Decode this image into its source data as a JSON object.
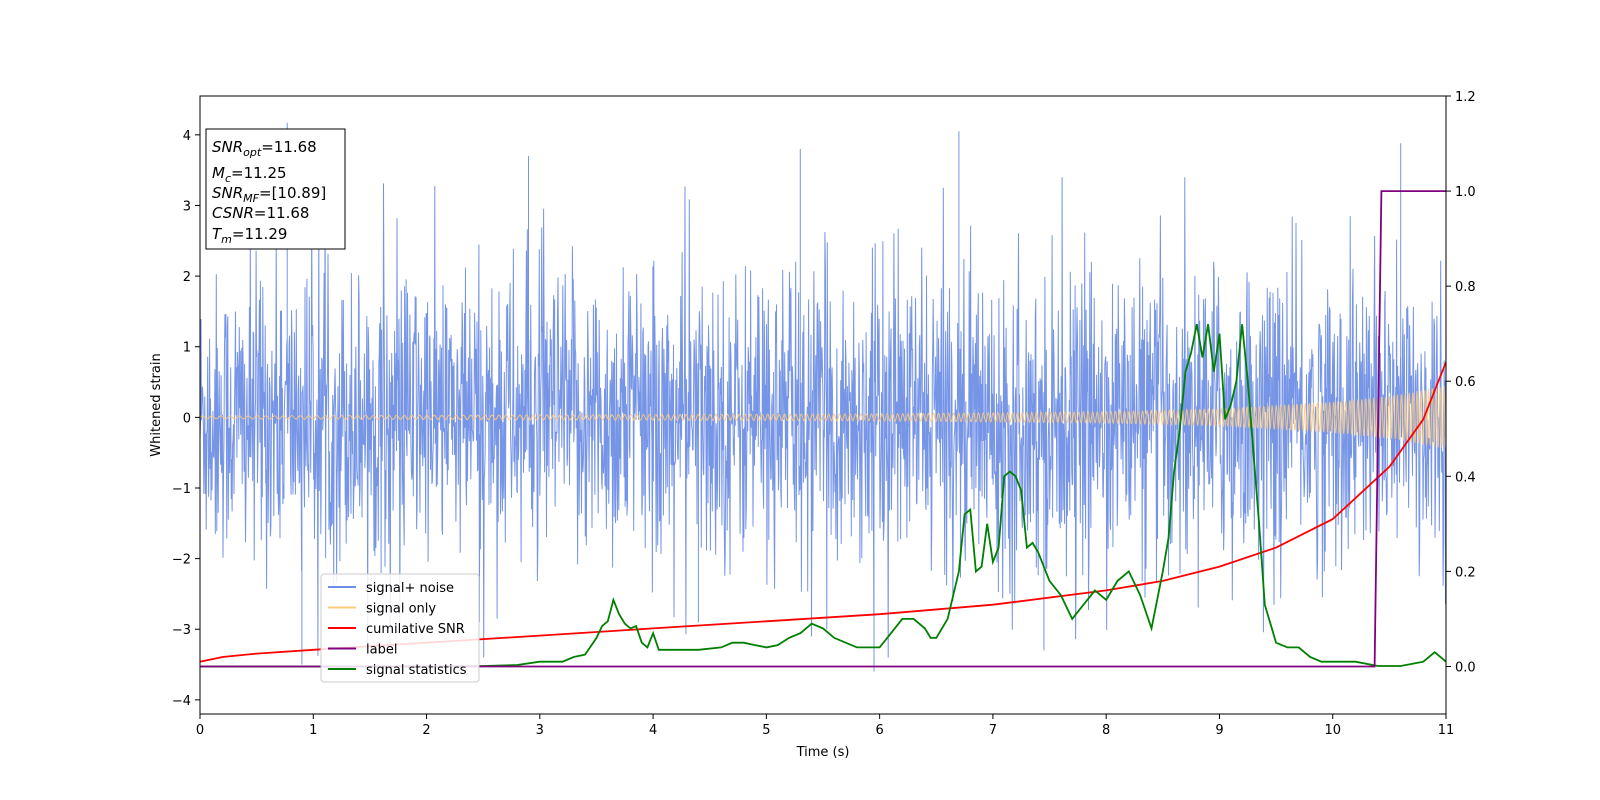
{
  "chart_data": {
    "type": "line",
    "xlabel": "Time (s)",
    "ylabel": "Whitened strain",
    "xlim": [
      0,
      11
    ],
    "ylim_left": [
      -4.2,
      4.55
    ],
    "ylim_right": [
      -0.1,
      1.2
    ],
    "x_ticks": [
      0,
      1,
      2,
      3,
      4,
      5,
      6,
      7,
      8,
      9,
      10,
      11
    ],
    "y_ticks_left": [
      -4,
      -3,
      -2,
      -1,
      0,
      1,
      2,
      3,
      4
    ],
    "y_ticks_left_labels": [
      "−4",
      "−3",
      "−2",
      "−1",
      "0",
      "1",
      "2",
      "3",
      "4"
    ],
    "y_ticks_right": [
      0.0,
      0.2,
      0.4,
      0.6,
      0.8,
      1.0,
      1.2
    ],
    "y_ticks_right_labels": [
      "0.0",
      "0.2",
      "0.4",
      "0.6",
      "0.8",
      "1.0",
      "1.2"
    ],
    "grid": false,
    "legend_position": "lower-left",
    "legend": [
      {
        "name": "signal+ noise",
        "color": "#6f8fe6"
      },
      {
        "name": "signal only",
        "color": "#ffc97a"
      },
      {
        "name": "cumilative SNR",
        "color": "#ff0000"
      },
      {
        "name": "label",
        "color": "#800080"
      },
      {
        "name": "signal statistics",
        "color": "#007f00"
      }
    ],
    "info_box": {
      "position": "top-left",
      "lines": [
        {
          "base": "SNR",
          "sub": "opt",
          "rest": "=11.68"
        },
        {
          "base": "M",
          "sub": "c",
          "rest": "=11.25"
        },
        {
          "base": "SNR",
          "sub": "MF",
          "rest": "=[10.89]"
        },
        {
          "base": "CSNR",
          "sub": "",
          "rest": "=11.68"
        },
        {
          "base": "T",
          "sub": "m",
          "rest": "=11.29"
        }
      ]
    },
    "series": [
      {
        "name": "signal+ noise",
        "axis": "left",
        "description": "dense whitened noise, typical amplitude about ±1.8 with spikes to ±4",
        "noise_sigma": 1.0,
        "spikes": [
          [
            0.77,
            4.17
          ],
          [
            2.9,
            3.7
          ],
          [
            5.3,
            3.8
          ],
          [
            6.7,
            4.05
          ],
          [
            10.6,
            3.88
          ],
          [
            5.95,
            -3.6
          ],
          [
            0.9,
            -3.5
          ],
          [
            7.45,
            -3.3
          ],
          [
            4.4,
            -2.9
          ]
        ]
      },
      {
        "name": "signal only",
        "axis": "left",
        "description": "chirp with amplitude growing toward merger",
        "amplitude_points": [
          [
            0,
            0.02
          ],
          [
            6,
            0.05
          ],
          [
            8,
            0.08
          ],
          [
            9,
            0.12
          ],
          [
            10,
            0.22
          ],
          [
            10.5,
            0.3
          ],
          [
            11,
            0.45
          ]
        ]
      },
      {
        "name": "cumilative SNR",
        "axis": "right",
        "x": [
          0,
          0.2,
          0.5,
          1,
          2,
          3,
          4,
          5,
          6,
          7,
          8,
          8.5,
          9,
          9.5,
          10,
          10.5,
          10.8,
          11
        ],
        "y": [
          0.01,
          0.02,
          0.027,
          0.035,
          0.05,
          0.065,
          0.08,
          0.095,
          0.11,
          0.13,
          0.16,
          0.18,
          0.21,
          0.25,
          0.31,
          0.42,
          0.52,
          0.64
        ]
      },
      {
        "name": "label",
        "axis": "right",
        "x": [
          0,
          10.37,
          10.43,
          11
        ],
        "y": [
          0.0,
          0.0,
          1.0,
          1.0
        ]
      },
      {
        "name": "signal statistics",
        "axis": "right",
        "x": [
          0,
          1,
          2,
          2.5,
          2.8,
          3.0,
          3.2,
          3.3,
          3.4,
          3.5,
          3.55,
          3.6,
          3.65,
          3.7,
          3.75,
          3.8,
          3.85,
          3.9,
          3.95,
          4.0,
          4.05,
          4.1,
          4.2,
          4.4,
          4.6,
          4.7,
          4.8,
          4.9,
          5.0,
          5.1,
          5.2,
          5.3,
          5.4,
          5.5,
          5.6,
          5.7,
          5.8,
          5.9,
          6.0,
          6.1,
          6.2,
          6.3,
          6.4,
          6.45,
          6.5,
          6.6,
          6.7,
          6.75,
          6.8,
          6.85,
          6.9,
          6.95,
          7.0,
          7.05,
          7.1,
          7.15,
          7.2,
          7.25,
          7.3,
          7.35,
          7.4,
          7.5,
          7.6,
          7.7,
          7.8,
          7.9,
          8.0,
          8.1,
          8.2,
          8.3,
          8.4,
          8.5,
          8.55,
          8.6,
          8.65,
          8.7,
          8.75,
          8.8,
          8.85,
          8.9,
          8.95,
          9.0,
          9.05,
          9.1,
          9.15,
          9.2,
          9.25,
          9.3,
          9.35,
          9.4,
          9.5,
          9.6,
          9.7,
          9.8,
          9.9,
          10.0,
          10.2,
          10.4,
          10.6,
          10.8,
          10.9,
          11.0
        ],
        "y": [
          0.0,
          0.0,
          0.0,
          0.001,
          0.003,
          0.01,
          0.01,
          0.02,
          0.025,
          0.06,
          0.085,
          0.095,
          0.14,
          0.11,
          0.09,
          0.08,
          0.085,
          0.05,
          0.04,
          0.07,
          0.035,
          0.035,
          0.035,
          0.035,
          0.04,
          0.05,
          0.05,
          0.045,
          0.04,
          0.045,
          0.06,
          0.07,
          0.09,
          0.08,
          0.06,
          0.05,
          0.04,
          0.04,
          0.04,
          0.07,
          0.1,
          0.1,
          0.08,
          0.06,
          0.06,
          0.1,
          0.2,
          0.32,
          0.33,
          0.2,
          0.21,
          0.3,
          0.22,
          0.25,
          0.4,
          0.41,
          0.4,
          0.37,
          0.25,
          0.26,
          0.24,
          0.18,
          0.15,
          0.1,
          0.13,
          0.16,
          0.14,
          0.18,
          0.2,
          0.15,
          0.08,
          0.2,
          0.27,
          0.41,
          0.5,
          0.62,
          0.66,
          0.72,
          0.65,
          0.72,
          0.62,
          0.7,
          0.52,
          0.55,
          0.6,
          0.72,
          0.6,
          0.45,
          0.3,
          0.13,
          0.05,
          0.04,
          0.04,
          0.02,
          0.01,
          0.01,
          0.01,
          0.001,
          0.001,
          0.01,
          0.03,
          0.01
        ]
      }
    ]
  }
}
